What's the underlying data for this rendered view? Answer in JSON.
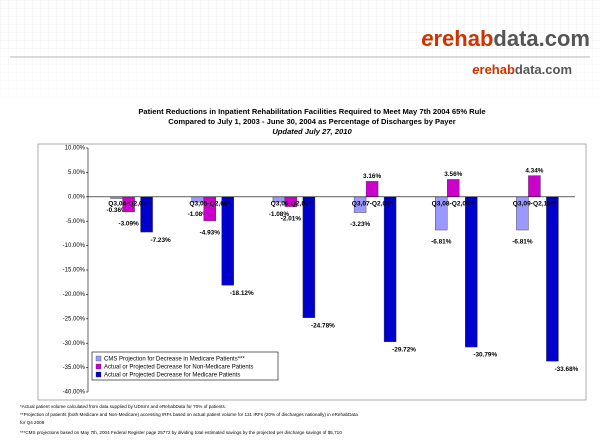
{
  "logo": {
    "large": [
      "e",
      "rehab",
      "data",
      ".com"
    ],
    "small": [
      "e",
      "rehab",
      "data",
      ".com"
    ]
  },
  "chart_data": {
    "type": "bar",
    "title": [
      "Patient Reductions in Inpatient Rehabilitation Facilities Required to Meet May 7th 2004 65% Rule",
      "Compared to July 1, 2003 - June 30, 2004 as Percentage of Discharges by Payer"
    ],
    "subtitle": "Updated July 27, 2010",
    "categories": [
      "Q3,04-Q2,05*",
      "Q3,05-Q2,06*",
      "Q3,06-Q2,07*",
      "Q3,07-Q2,08*",
      "Q3,08-Q2,09**",
      "Q3,09-Q2,10**"
    ],
    "series": [
      {
        "name": "CMS Projection for Decrease in Medicare Patients***",
        "color": "#9999ff",
        "values": [
          -0.36,
          -1.08,
          -1.08,
          -3.23,
          -6.81,
          -6.81
        ],
        "value_labels": [
          "-0.36%",
          "-1.08%",
          "-1.08%",
          "-3.23%",
          "-6.81%",
          "-6.81%"
        ]
      },
      {
        "name": "Actual or Projected Decrease for Non-Medicare Patients",
        "color": "#cc00cc",
        "values": [
          -3.09,
          -4.93,
          -2.01,
          3.16,
          3.56,
          4.34
        ],
        "value_labels": [
          "-3.09%",
          "-4.93%",
          "-2.01%",
          "3.16%",
          "3.56%",
          "4.34%"
        ]
      },
      {
        "name": "Actual or Projected Decrease for Medicare Patients",
        "color": "#0000cc",
        "values": [
          -7.23,
          -18.12,
          -24.78,
          -29.72,
          -30.79,
          -33.68
        ],
        "value_labels": [
          "-7.23%",
          "-18.12%",
          "-24.78%",
          "-29.72%",
          "-30.79%",
          "-33.68%"
        ]
      }
    ],
    "ylim": [
      -40,
      10
    ],
    "yticks": [
      {
        "value": 10,
        "label": "10.00%"
      },
      {
        "value": 5,
        "label": "5.00%"
      },
      {
        "value": 0,
        "label": "0.00%"
      },
      {
        "value": -5,
        "label": "-5.00%"
      },
      {
        "value": -10,
        "label": "-10.00%"
      },
      {
        "value": -15,
        "label": "-15.00%"
      },
      {
        "value": -20,
        "label": "-20.00%"
      },
      {
        "value": -25,
        "label": "-25.00%"
      },
      {
        "value": -30,
        "label": "-30.00%"
      },
      {
        "value": -35,
        "label": "-35.00%"
      },
      {
        "value": -40,
        "label": "-40.00%"
      }
    ],
    "legend": "lower left",
    "footnotes": [
      "*Actual patient volume calculated from data supplied by UDSmr and eRehabData for 70% of patients.",
      "**Projection of patients (both Medicare and Non-Medicare) accessing IRFs based on actual patient volume for 131 IRFs (20% of discharges nationally) in eRehabData",
      "for Q4 2009",
      "***CMS projections based on May 7th, 2004 Federal Register page 25772 by dividing total estimated savings by the projected per discharge savings of $5,710"
    ]
  }
}
